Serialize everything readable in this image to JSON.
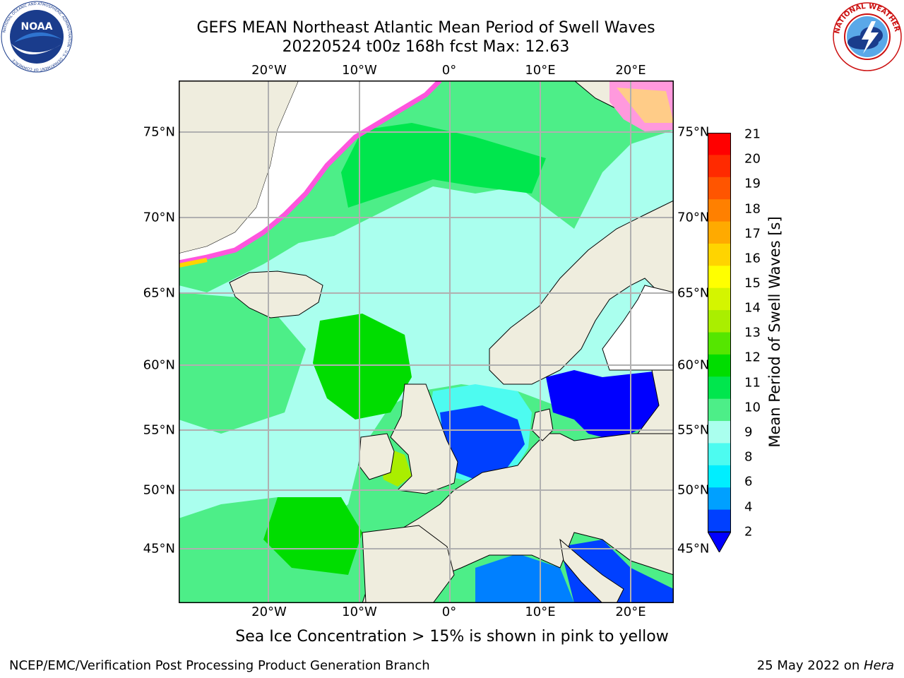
{
  "title": {
    "line1": "GEFS MEAN Northeast Atlantic Mean Period of Swell Waves",
    "line2": "20220524 t00z 168h fcst   Max: 12.63"
  },
  "logos": {
    "left": {
      "text": "NOAA",
      "ring_text": "NATIONAL OCEANIC AND ATMOSPHERIC ADMINISTRATION · U.S. DEPARTMENT OF COMMERCE",
      "icon": "noaa-logo"
    },
    "right": {
      "ring_text": "NATIONAL WEATHER SERVICE",
      "icon": "nws-logo"
    }
  },
  "map": {
    "lon_labels": [
      "20°W",
      "10°W",
      "0°",
      "10°E",
      "20°E"
    ],
    "lat_labels": [
      "75°N",
      "70°N",
      "65°N",
      "60°N",
      "55°N",
      "50°N",
      "45°N"
    ],
    "land_color": "#efedde",
    "ice_color": "#ffffff",
    "gridline_color": "#b0b0b0"
  },
  "colorbar": {
    "label": "Mean Period of Swell Waves [s]",
    "ticks": [
      "21",
      "20",
      "19",
      "18",
      "17",
      "16",
      "15",
      "14",
      "13",
      "12",
      "11",
      "10",
      "9",
      "8",
      "6",
      "4",
      "2"
    ],
    "colors": [
      "#ff0000",
      "#ff2a00",
      "#ff5500",
      "#ff8000",
      "#ffaa00",
      "#ffd400",
      "#ffff00",
      "#d4f500",
      "#aaee00",
      "#55e600",
      "#00dd00",
      "#00e64d",
      "#4dee88",
      "#aaffee",
      "#4dfbf0",
      "#00eeff",
      "#00a0ff",
      "#0040ff"
    ],
    "under_color": "#0000ff"
  },
  "caption": "Sea Ice Concentration > 15% is shown in pink to yellow",
  "footer": {
    "left": "NCEP/EMC/Verification Post Processing Product Generation Branch",
    "date": "25 May 2022 on ",
    "host": "Hera"
  }
}
